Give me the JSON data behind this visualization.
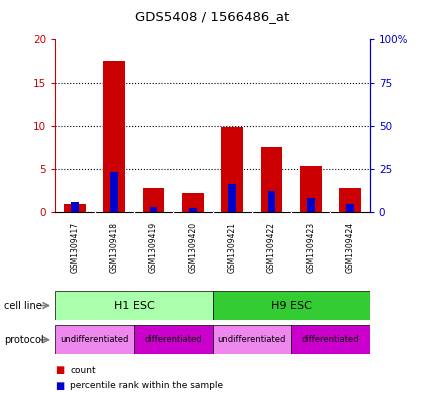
{
  "title": "GDS5408 / 1566486_at",
  "samples": [
    "GSM1309417",
    "GSM1309418",
    "GSM1309419",
    "GSM1309420",
    "GSM1309421",
    "GSM1309422",
    "GSM1309423",
    "GSM1309424"
  ],
  "count_values": [
    1.0,
    17.5,
    2.8,
    2.2,
    9.9,
    7.5,
    5.3,
    2.8
  ],
  "percentile_values": [
    6.0,
    23.5,
    3.0,
    2.5,
    16.5,
    12.0,
    8.0,
    4.5
  ],
  "left_ylim": [
    0,
    20
  ],
  "right_ylim": [
    0,
    100
  ],
  "left_yticks": [
    0,
    5,
    10,
    15,
    20
  ],
  "right_yticks": [
    0,
    25,
    50,
    75,
    100
  ],
  "left_yticklabels": [
    "0",
    "5",
    "10",
    "15",
    "20"
  ],
  "right_yticklabels": [
    "0",
    "25",
    "50",
    "75",
    "100%"
  ],
  "count_color": "#cc0000",
  "percentile_color": "#0000cc",
  "bar_width": 0.55,
  "cell_line_groups": [
    {
      "label": "H1 ESC",
      "span": [
        0,
        4
      ],
      "color": "#aaffaa"
    },
    {
      "label": "H9 ESC",
      "span": [
        4,
        8
      ],
      "color": "#33cc33"
    }
  ],
  "protocol_groups": [
    {
      "label": "undifferentiated",
      "span": [
        0,
        2
      ],
      "color": "#ee88ee"
    },
    {
      "label": "differentiated",
      "span": [
        2,
        4
      ],
      "color": "#cc00cc"
    },
    {
      "label": "undifferentiated",
      "span": [
        4,
        6
      ],
      "color": "#ee88ee"
    },
    {
      "label": "differentiated",
      "span": [
        6,
        8
      ],
      "color": "#cc00cc"
    }
  ],
  "legend_count_label": "count",
  "legend_percentile_label": "percentile rank within the sample",
  "count_color_legend": "#cc0000",
  "percentile_color_legend": "#0000cc",
  "left_axis_color": "#cc0000",
  "right_axis_color": "#0000cc",
  "grid_color": "#000000",
  "bg_color": "#ffffff",
  "tick_label_area_color": "#cccccc",
  "cell_line_label": "cell line",
  "protocol_label": "protocol"
}
